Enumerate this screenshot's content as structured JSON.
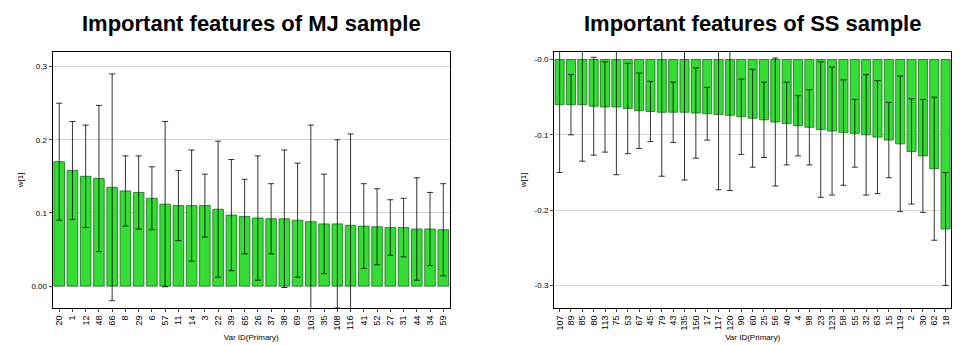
{
  "chart_data": [
    {
      "type": "bar",
      "title": "Important features of MJ sample",
      "x_label": "Var ID(Primary)",
      "y_label": "w[1]",
      "categories": [
        "20",
        "1",
        "12",
        "48",
        "66",
        "8",
        "29",
        "6",
        "57",
        "11",
        "14",
        "3",
        "22",
        "39",
        "65",
        "26",
        "37",
        "38",
        "69",
        "103",
        "35",
        "108",
        "116",
        "41",
        "52",
        "27",
        "31",
        "44",
        "34",
        "59"
      ],
      "values": [
        0.17,
        0.158,
        0.15,
        0.147,
        0.135,
        0.13,
        0.128,
        0.12,
        0.112,
        0.11,
        0.11,
        0.11,
        0.105,
        0.097,
        0.095,
        0.093,
        0.092,
        0.092,
        0.09,
        0.088,
        0.085,
        0.085,
        0.083,
        0.082,
        0.081,
        0.08,
        0.08,
        0.078,
        0.078,
        0.077
      ],
      "errors": [
        0.08,
        0.067,
        0.07,
        0.1,
        0.155,
        0.048,
        0.05,
        0.043,
        0.113,
        0.048,
        0.076,
        0.043,
        0.093,
        0.076,
        0.051,
        0.085,
        0.048,
        0.094,
        0.078,
        0.132,
        0.068,
        0.115,
        0.125,
        0.058,
        0.052,
        0.038,
        0.04,
        0.07,
        0.05,
        0.063
      ],
      "color": "#33dd33",
      "ylim": [
        -0.03,
        0.32
      ],
      "yticks": [
        {
          "value": 0,
          "label": "0.00"
        },
        0.1,
        0.2,
        0.3
      ],
      "grid": true
    },
    {
      "type": "bar",
      "title": "Important features of SS sample",
      "x_label": "Var ID(Primary)",
      "y_label": "w[1]",
      "categories": [
        "107",
        "89",
        "85",
        "80",
        "113",
        "75",
        "53",
        "67",
        "45",
        "79",
        "43",
        "135",
        "150",
        "17",
        "117",
        "120",
        "90",
        "60",
        "25",
        "56",
        "40",
        "4",
        "98",
        "23",
        "123",
        "58",
        "55",
        "32",
        "63",
        "15",
        "119",
        "2",
        "30",
        "62",
        "18"
      ],
      "values": [
        -0.06,
        -0.06,
        -0.06,
        -0.062,
        -0.063,
        -0.063,
        -0.065,
        -0.068,
        -0.069,
        -0.07,
        -0.07,
        -0.07,
        -0.071,
        -0.072,
        -0.073,
        -0.074,
        -0.076,
        -0.078,
        -0.08,
        -0.083,
        -0.085,
        -0.088,
        -0.09,
        -0.093,
        -0.095,
        -0.097,
        -0.098,
        -0.1,
        -0.103,
        -0.107,
        -0.112,
        -0.122,
        -0.128,
        -0.145,
        -0.225
      ],
      "errors": [
        0.09,
        0.04,
        0.075,
        0.065,
        0.06,
        0.09,
        0.06,
        0.05,
        0.04,
        0.085,
        0.04,
        0.09,
        0.06,
        0.035,
        0.1,
        0.1,
        0.05,
        0.065,
        0.05,
        0.085,
        0.055,
        0.04,
        0.05,
        0.09,
        0.085,
        0.07,
        0.045,
        0.08,
        0.075,
        0.05,
        0.09,
        0.07,
        0.075,
        0.095,
        0.075
      ],
      "color": "#33dd33",
      "ylim": [
        -0.33,
        0.01
      ],
      "yticks": [
        {
          "value": 0,
          "label": "-0.0"
        },
        -0.1,
        -0.2,
        -0.3
      ],
      "grid": true
    }
  ]
}
